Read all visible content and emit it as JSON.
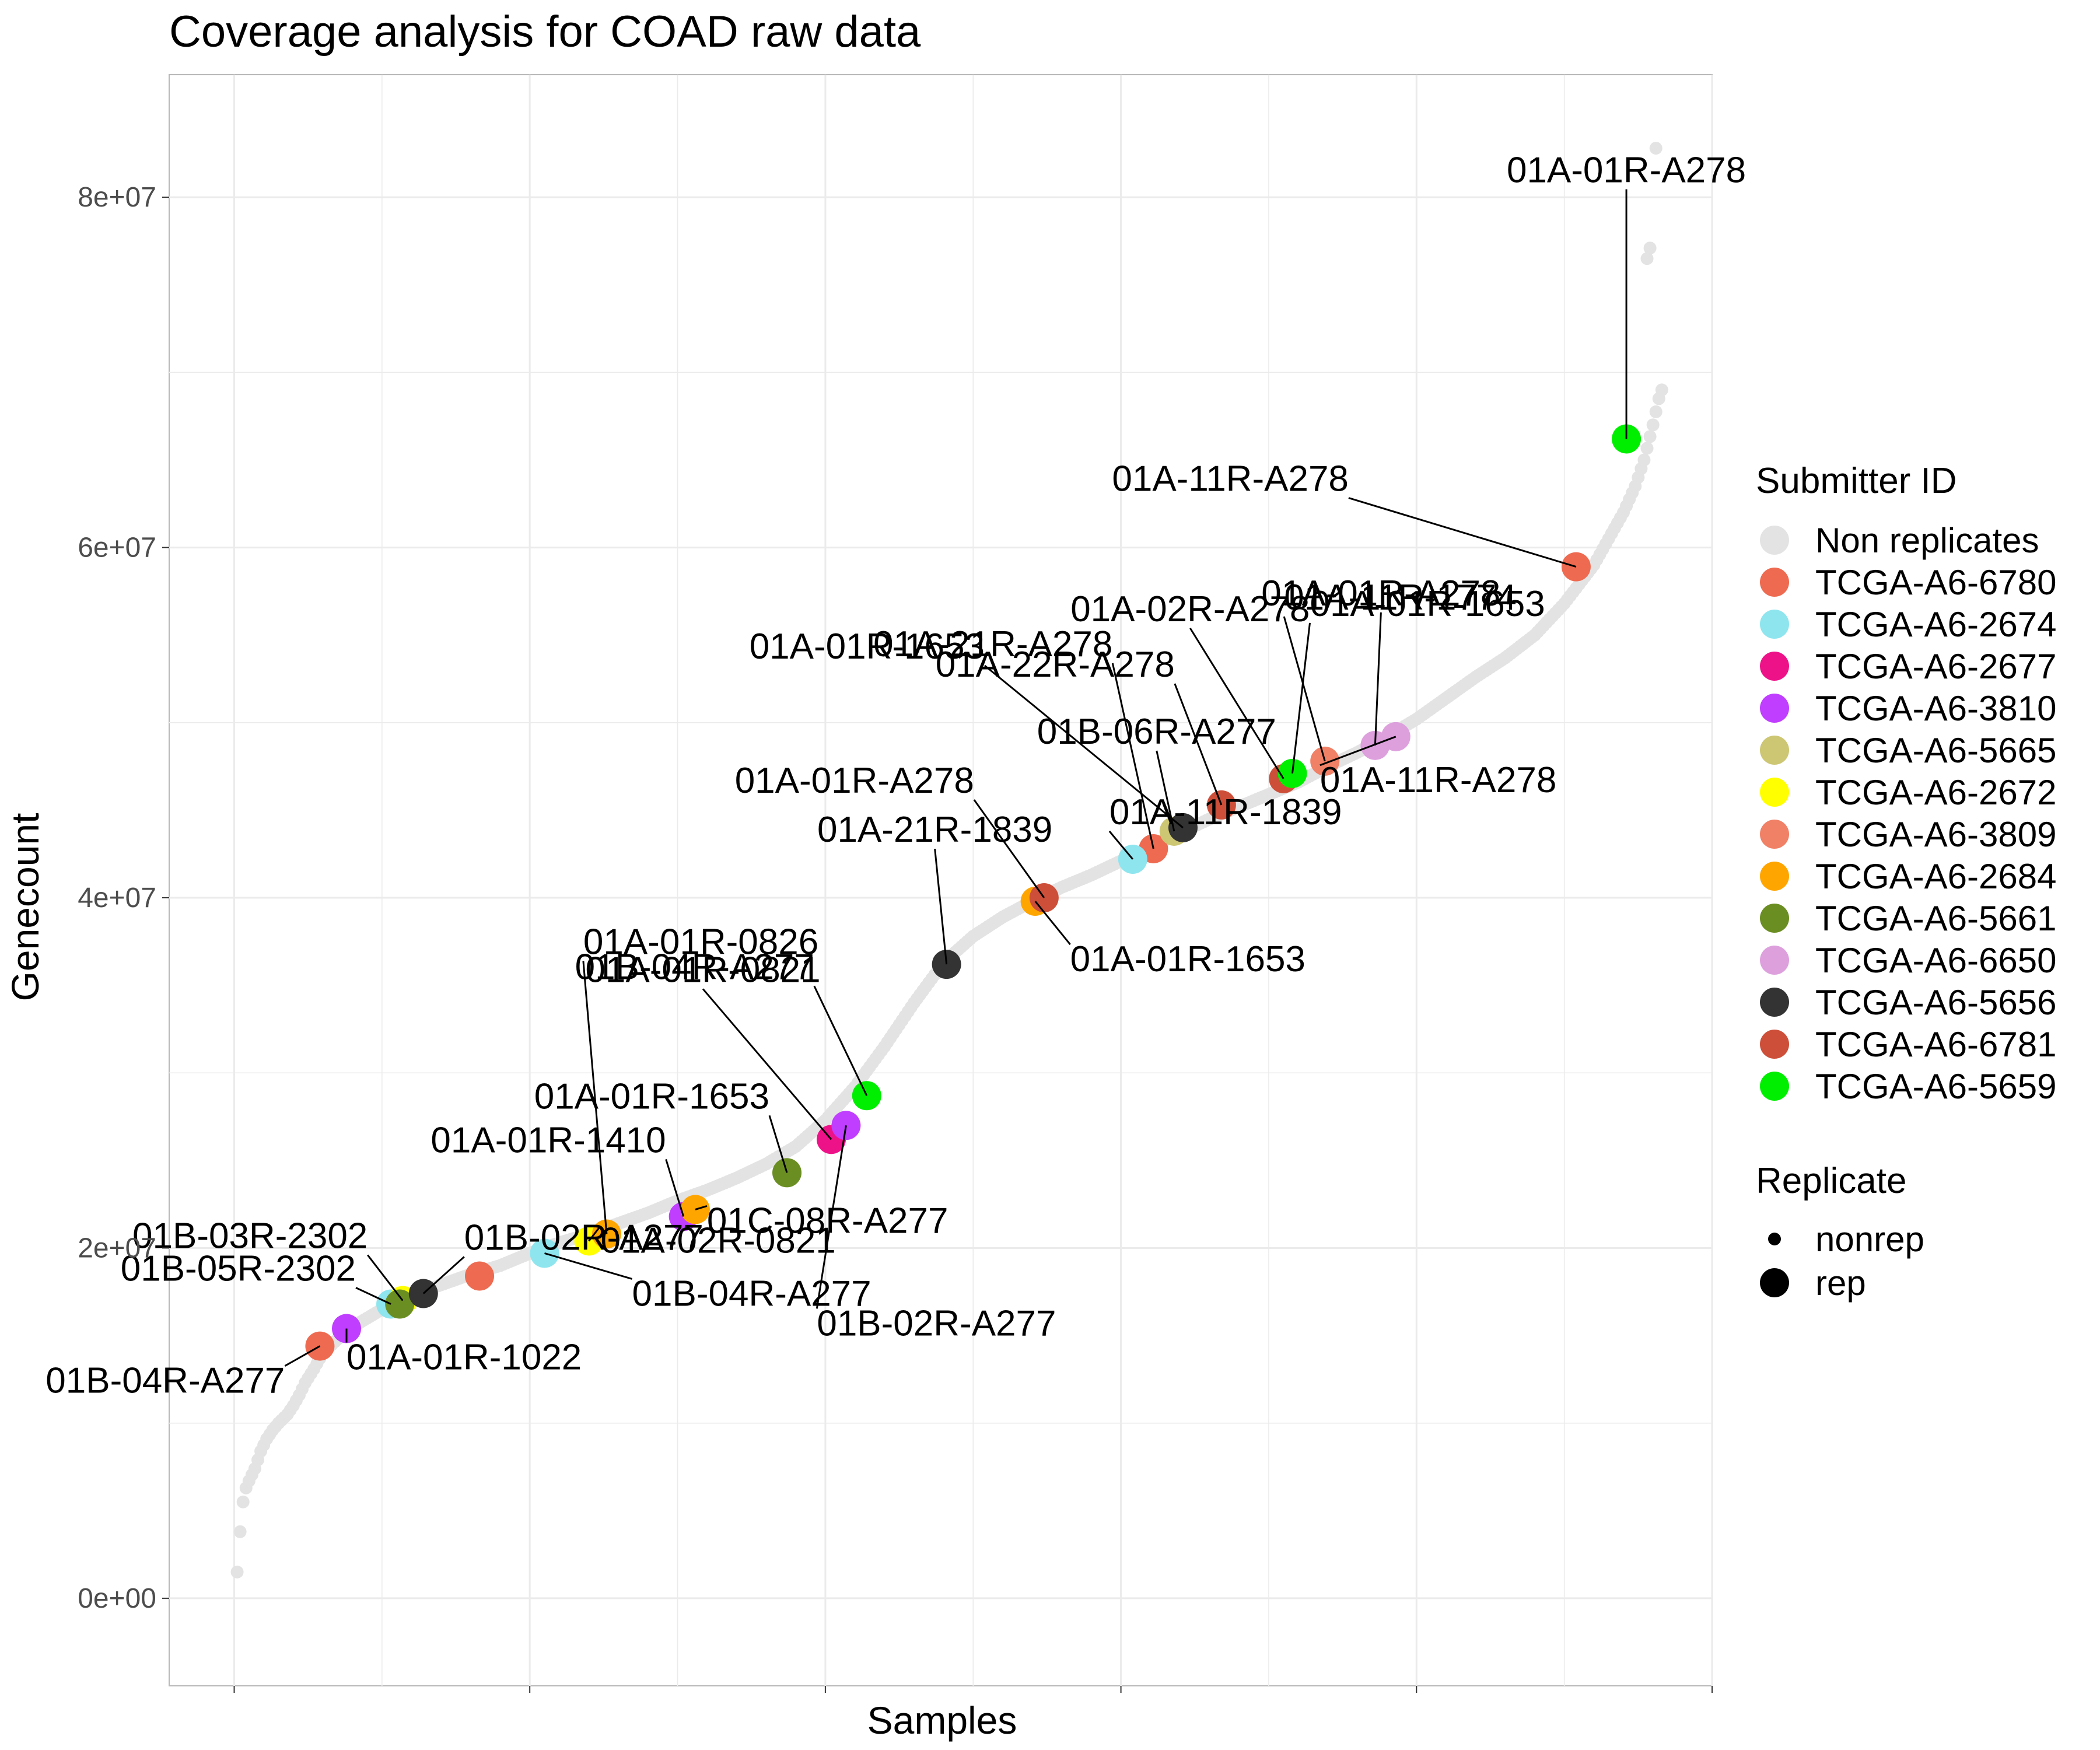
{
  "chart_data": {
    "type": "scatter",
    "title": "Coverage analysis for COAD raw data",
    "xlabel": "Samples",
    "ylabel": "Genecount",
    "ylim": [
      -5000000,
      87000000
    ],
    "xlim": [
      -22,
      500
    ],
    "y_ticks": [
      0,
      20000000,
      40000000,
      60000000,
      80000000
    ],
    "y_tick_labels": [
      "0e+00",
      "2e+07",
      "4e+07",
      "6e+07",
      "8e+07"
    ],
    "grid": true,
    "legend_position": "right",
    "legend_submitter_title": "Submitter ID",
    "legend_replicate_title": "Replicate",
    "replicate_levels": [
      "nonrep",
      "rep"
    ],
    "nonrep_name": "Non replicates",
    "nonrep_color": "#e3e3e3",
    "nonrep_curve": [
      [
        1,
        1500000
      ],
      [
        2,
        3800000
      ],
      [
        3,
        5500000
      ],
      [
        4,
        6300000
      ],
      [
        5,
        6700000
      ],
      [
        7,
        7400000
      ],
      [
        9,
        8400000
      ],
      [
        11,
        9100000
      ],
      [
        13,
        9600000
      ],
      [
        15,
        10000000
      ],
      [
        18,
        10500000
      ],
      [
        20,
        11000000
      ],
      [
        22,
        11600000
      ],
      [
        24,
        12300000
      ],
      [
        27,
        13100000
      ],
      [
        30,
        14000000
      ],
      [
        35,
        14800000
      ],
      [
        40,
        15500000
      ],
      [
        45,
        16000000
      ],
      [
        50,
        16500000
      ],
      [
        55,
        16900000
      ],
      [
        60,
        17200000
      ],
      [
        65,
        17600000
      ],
      [
        70,
        17900000
      ],
      [
        75,
        18200000
      ],
      [
        80,
        18500000
      ],
      [
        90,
        19000000
      ],
      [
        100,
        19700000
      ],
      [
        110,
        20300000
      ],
      [
        120,
        20800000
      ],
      [
        130,
        21400000
      ],
      [
        140,
        22000000
      ],
      [
        150,
        22700000
      ],
      [
        160,
        23300000
      ],
      [
        170,
        24000000
      ],
      [
        180,
        24800000
      ],
      [
        190,
        25800000
      ],
      [
        200,
        27300000
      ],
      [
        210,
        29200000
      ],
      [
        220,
        31500000
      ],
      [
        230,
        34000000
      ],
      [
        240,
        36300000
      ],
      [
        250,
        37800000
      ],
      [
        260,
        38900000
      ],
      [
        270,
        39800000
      ],
      [
        280,
        40600000
      ],
      [
        290,
        41300000
      ],
      [
        300,
        42100000
      ],
      [
        310,
        42900000
      ],
      [
        320,
        43700000
      ],
      [
        330,
        44500000
      ],
      [
        340,
        45200000
      ],
      [
        350,
        45900000
      ],
      [
        360,
        46600000
      ],
      [
        370,
        47500000
      ],
      [
        380,
        48300000
      ],
      [
        390,
        49200000
      ],
      [
        400,
        50200000
      ],
      [
        410,
        51400000
      ],
      [
        420,
        52600000
      ],
      [
        430,
        53700000
      ],
      [
        440,
        55000000
      ],
      [
        450,
        56800000
      ],
      [
        460,
        59000000
      ],
      [
        465,
        60500000
      ],
      [
        470,
        62000000
      ],
      [
        474,
        63500000
      ],
      [
        477,
        65000000
      ],
      [
        480,
        67000000
      ],
      [
        482,
        68500000
      ],
      [
        483,
        69000000
      ]
    ],
    "nonrep_outliers": [
      [
        478,
        76500000
      ],
      [
        479,
        77100000
      ],
      [
        481,
        82800000
      ]
    ],
    "series": [
      {
        "name": "TCGA-A6-6780",
        "color": "#ee6a50",
        "points": [
          {
            "x": 29,
            "y": 14400000,
            "label": "01B-04R-A277"
          },
          {
            "x": 83,
            "y": 18400000,
            "label": ""
          },
          {
            "x": 311,
            "y": 42800000,
            "label": "01A-21R-A278"
          },
          {
            "x": 454,
            "y": 58900000,
            "label": "01A-11R-A278"
          }
        ]
      },
      {
        "name": "TCGA-A6-2674",
        "color": "#8ee5ee",
        "points": [
          {
            "x": 53,
            "y": 16800000,
            "label": "01B-05R-2302"
          },
          {
            "x": 105,
            "y": 19700000,
            "label": "01B-04R-A277"
          },
          {
            "x": 304,
            "y": 42200000,
            "label": "01A-11R-1839"
          }
        ]
      },
      {
        "name": "TCGA-A6-2677",
        "color": "#ee1289",
        "points": [
          {
            "x": 202,
            "y": 26200000,
            "label": "01A-01R-0821"
          }
        ]
      },
      {
        "name": "TCGA-A6-3810",
        "color": "#bf3eff",
        "points": [
          {
            "x": 38,
            "y": 15400000,
            "label": "01A-01R-1022"
          },
          {
            "x": 152,
            "y": 21800000,
            "label": "01A-01R-1410"
          },
          {
            "x": 207,
            "y": 27000000,
            "label": "01B-02R-A277"
          }
        ]
      },
      {
        "name": "TCGA-A6-5665",
        "color": "#cdc673",
        "points": [
          {
            "x": 318,
            "y": 43800000,
            "label": "01B-06R-A277"
          }
        ]
      },
      {
        "name": "TCGA-A6-2672",
        "color": "#ffff00",
        "points": [
          {
            "x": 57,
            "y": 17000000,
            "label": "01B-03R-2302"
          },
          {
            "x": 120,
            "y": 20400000,
            "label": "01A-02R-0821"
          }
        ]
      },
      {
        "name": "TCGA-A6-3809",
        "color": "#f08066",
        "points": [
          {
            "x": 369,
            "y": 47800000,
            "label": "01A-11R-1774"
          }
        ]
      },
      {
        "name": "TCGA-A6-2684",
        "color": "#ffa500",
        "points": [
          {
            "x": 126,
            "y": 20800000,
            "label": "01A-01R-0826"
          },
          {
            "x": 156,
            "y": 22200000,
            "label": "01C-08R-A277"
          },
          {
            "x": 271,
            "y": 39800000,
            "label": "01A-01R-1653"
          }
        ]
      },
      {
        "name": "TCGA-A6-5661",
        "color": "#6b8e23",
        "points": [
          {
            "x": 56,
            "y": 16800000,
            "label": ""
          },
          {
            "x": 187,
            "y": 24300000,
            "label": "01A-01R-1653"
          }
        ]
      },
      {
        "name": "TCGA-A6-6650",
        "color": "#dda0dd",
        "points": [
          {
            "x": 386,
            "y": 48700000,
            "label": "01A-01R-A278"
          },
          {
            "x": 393,
            "y": 49200000,
            "label": "01A-11R-A278"
          }
        ]
      },
      {
        "name": "TCGA-A6-5656",
        "color": "#333333",
        "points": [
          {
            "x": 64,
            "y": 17400000,
            "label": "01B-02R-A277"
          },
          {
            "x": 241,
            "y": 36200000,
            "label": "01A-21R-1839"
          },
          {
            "x": 321,
            "y": 44000000,
            "label": "01A-01R-1653"
          }
        ]
      },
      {
        "name": "TCGA-A6-6781",
        "color": "#cd4f39",
        "points": [
          {
            "x": 274,
            "y": 40000000,
            "label": "01A-01R-A278"
          },
          {
            "x": 334,
            "y": 45300000,
            "label": "01A-22R-A278"
          },
          {
            "x": 355,
            "y": 46800000,
            "label": "01A-02R-A278"
          }
        ]
      },
      {
        "name": "TCGA-A6-5659",
        "color": "#00ee00",
        "points": [
          {
            "x": 214,
            "y": 28700000,
            "label": "01B-04R-A277"
          },
          {
            "x": 358,
            "y": 47100000,
            "label": "01A-01R-1653"
          },
          {
            "x": 471,
            "y": 66200000,
            "label": "01A-01R-A278"
          }
        ]
      }
    ]
  }
}
